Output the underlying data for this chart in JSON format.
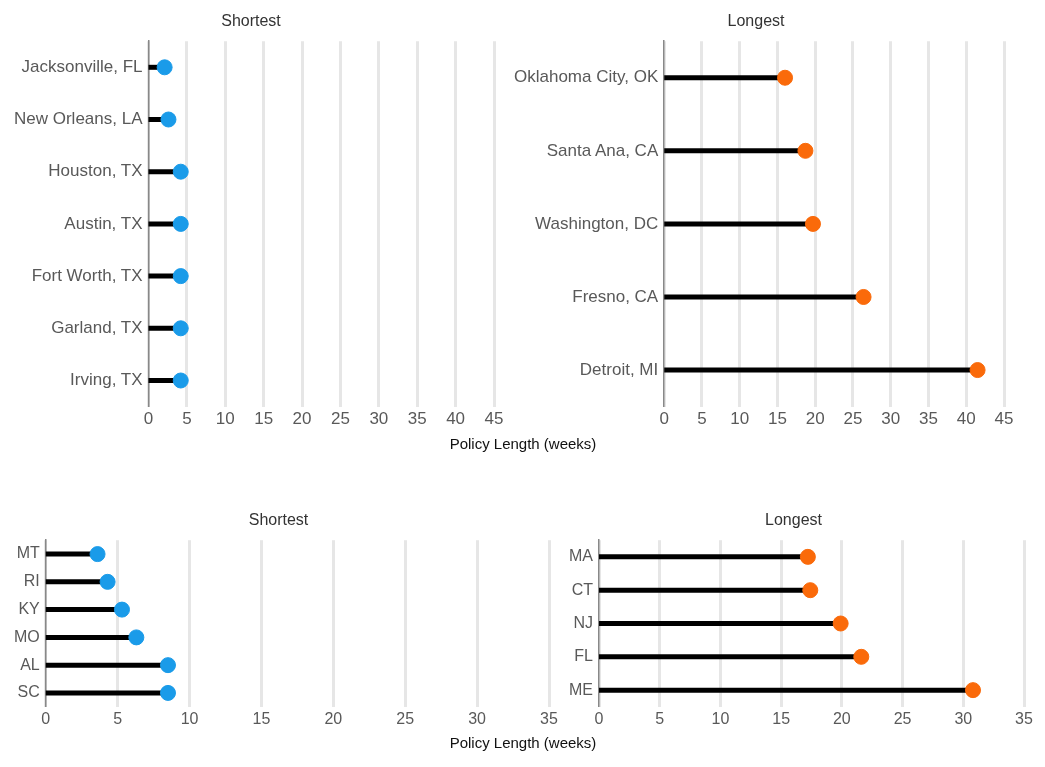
{
  "chart_data": [
    {
      "type": "lollipop",
      "title": "Shortest",
      "orientation": "horizontal",
      "categories": [
        "Jacksonville, FL",
        "New Orleans, LA",
        "Houston, TX",
        "Austin, TX",
        "Fort Worth, TX",
        "Garland, TX",
        "Irving, TX"
      ],
      "values": [
        2.1,
        2.6,
        4.2,
        4.2,
        4.2,
        4.2,
        4.2
      ],
      "color": "#1a9be9",
      "marker": "circle",
      "xlim": [
        0,
        45
      ],
      "xticks": [
        0,
        5,
        10,
        15,
        20,
        25,
        30,
        35,
        40,
        45
      ],
      "grid": "x",
      "xlabel": "Policy Length (weeks)"
    },
    {
      "type": "lollipop",
      "title": "Longest",
      "orientation": "horizontal",
      "categories": [
        "Oklahoma City, OK",
        "Santa Ana, CA",
        "Washington, DC",
        "Fresno, CA",
        "Detroit, MI"
      ],
      "values": [
        16.0,
        18.7,
        19.7,
        26.4,
        41.5
      ],
      "color": "#fa6a0a",
      "marker": "circle",
      "xlim": [
        0,
        45
      ],
      "xticks": [
        0,
        5,
        10,
        15,
        20,
        25,
        30,
        35,
        40,
        45
      ],
      "grid": "x"
    },
    {
      "type": "lollipop",
      "title": "Shortest",
      "orientation": "horizontal",
      "categories": [
        "MT",
        "RI",
        "KY",
        "MO",
        "AL",
        "SC"
      ],
      "values": [
        3.6,
        4.3,
        5.3,
        6.3,
        8.5,
        8.5
      ],
      "color": "#1a9be9",
      "marker": "circle",
      "xlim": [
        0,
        35
      ],
      "xticks": [
        0,
        5,
        10,
        15,
        20,
        25,
        30,
        35
      ],
      "grid": "x",
      "xlabel": "Policy Length (weeks)"
    },
    {
      "type": "lollipop",
      "title": "Longest",
      "orientation": "horizontal",
      "categories": [
        "MA",
        "CT",
        "NJ",
        "FL",
        "ME"
      ],
      "values": [
        17.2,
        17.4,
        19.9,
        21.6,
        30.8
      ],
      "color": "#fa6a0a",
      "marker": "circle",
      "xlim": [
        0,
        35
      ],
      "xticks": [
        0,
        5,
        10,
        15,
        20,
        25,
        30,
        35
      ],
      "grid": "x"
    }
  ]
}
